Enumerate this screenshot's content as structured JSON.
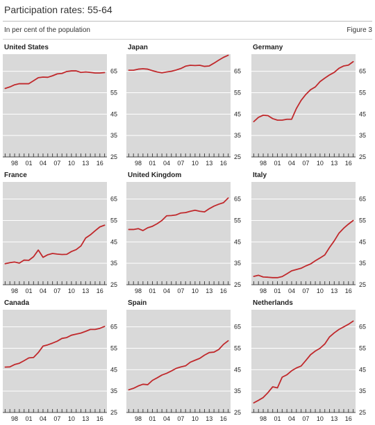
{
  "title": "Participation rates: 55-64",
  "subtitle": "In per cent of the population",
  "figure_label": "Figure 3",
  "colors": {
    "line": "#c0282b",
    "plot_bg": "#d9d9d9",
    "grid": "#ffffff",
    "text": "#222222"
  },
  "chart_data": [
    {
      "type": "line",
      "title": "United States",
      "x": [
        1996,
        1997,
        1998,
        1999,
        2000,
        2001,
        2002,
        2003,
        2004,
        2005,
        2006,
        2007,
        2008,
        2009,
        2010,
        2011,
        2012,
        2013,
        2014,
        2015,
        2016,
        2017
      ],
      "series": [
        {
          "values": [
            57,
            57.7,
            58.7,
            59.2,
            59.2,
            59.2,
            60.6,
            62,
            62.3,
            62.2,
            62.9,
            63.8,
            64,
            64.9,
            65.2,
            65.2,
            64.5,
            64.7,
            64.5,
            64.2,
            64.2,
            64.4
          ]
        }
      ],
      "xticks": [
        "98",
        "01",
        "04",
        "07",
        "10",
        "13",
        "16"
      ],
      "yticks": [
        25,
        35,
        45,
        55,
        65
      ],
      "ylim": [
        25,
        73
      ],
      "grid": true
    },
    {
      "type": "line",
      "title": "Japan",
      "x": [
        1996,
        1997,
        1998,
        1999,
        2000,
        2001,
        2002,
        2003,
        2004,
        2005,
        2006,
        2007,
        2008,
        2009,
        2010,
        2011,
        2012,
        2013,
        2014,
        2015,
        2016,
        2017
      ],
      "series": [
        {
          "values": [
            65.5,
            65.5,
            66,
            66.2,
            66,
            65.3,
            64.7,
            64.3,
            64.7,
            65,
            65.6,
            66.3,
            67.4,
            67.8,
            67.7,
            67.8,
            67.3,
            67.5,
            68.8,
            70.2,
            71.5,
            72.5
          ]
        }
      ],
      "xticks": [
        "98",
        "01",
        "04",
        "07",
        "10",
        "13",
        "16"
      ],
      "yticks": [
        25,
        35,
        45,
        55,
        65
      ],
      "ylim": [
        25,
        73
      ],
      "grid": true
    },
    {
      "type": "line",
      "title": "Germany",
      "x": [
        1996,
        1997,
        1998,
        1999,
        2000,
        2001,
        2002,
        2003,
        2004,
        2005,
        2006,
        2007,
        2008,
        2009,
        2010,
        2011,
        2012,
        2013,
        2014,
        2015,
        2016,
        2017
      ],
      "series": [
        {
          "values": [
            41.5,
            43.5,
            44.5,
            44.3,
            42.9,
            42.2,
            42.2,
            42.6,
            42.6,
            47.6,
            51.4,
            54.2,
            56.4,
            57.7,
            60.2,
            61.8,
            63.3,
            64.5,
            66.4,
            67.5,
            67.9,
            69.5
          ]
        }
      ],
      "xticks": [
        "98",
        "01",
        "04",
        "07",
        "10",
        "13",
        "16"
      ],
      "yticks": [
        25,
        35,
        45,
        55,
        65
      ],
      "ylim": [
        25,
        73
      ],
      "grid": true
    },
    {
      "type": "line",
      "title": "France",
      "x": [
        1996,
        1997,
        1998,
        1999,
        2000,
        2001,
        2002,
        2003,
        2004,
        2005,
        2006,
        2007,
        2008,
        2009,
        2010,
        2011,
        2012,
        2013,
        2014,
        2015,
        2016,
        2017
      ],
      "series": [
        {
          "values": [
            34.8,
            35.3,
            35.6,
            35.1,
            36.5,
            36.4,
            38.1,
            41.2,
            37.8,
            39,
            39.6,
            39.3,
            39.1,
            39.2,
            40.5,
            41.4,
            43.1,
            46.8,
            48.3,
            50.2,
            52,
            52.8
          ]
        }
      ],
      "xticks": [
        "98",
        "01",
        "04",
        "07",
        "10",
        "13",
        "16"
      ],
      "yticks": [
        25,
        35,
        45,
        55,
        65
      ],
      "ylim": [
        25,
        73
      ],
      "grid": true
    },
    {
      "type": "line",
      "title": "United Kingdom",
      "x": [
        1996,
        1997,
        1998,
        1999,
        2000,
        2001,
        2002,
        2003,
        2004,
        2005,
        2006,
        2007,
        2008,
        2009,
        2010,
        2011,
        2012,
        2013,
        2014,
        2015,
        2016,
        2017
      ],
      "series": [
        {
          "values": [
            50.8,
            50.8,
            51.2,
            50.3,
            51.6,
            52.3,
            53.5,
            55,
            57.2,
            57.3,
            57.6,
            58.5,
            58.7,
            59.3,
            59.8,
            59.3,
            59,
            60.5,
            61.7,
            62.6,
            63.3,
            65.5
          ]
        }
      ],
      "xticks": [
        "98",
        "01",
        "04",
        "07",
        "10",
        "13",
        "16"
      ],
      "yticks": [
        25,
        35,
        45,
        55,
        65
      ],
      "ylim": [
        25,
        73
      ],
      "grid": true
    },
    {
      "type": "line",
      "title": "Italy",
      "x": [
        1996,
        1997,
        1998,
        1999,
        2000,
        2001,
        2002,
        2003,
        2004,
        2005,
        2006,
        2007,
        2008,
        2009,
        2010,
        2011,
        2012,
        2013,
        2014,
        2015,
        2016,
        2017
      ],
      "series": [
        {
          "values": [
            28.9,
            29.4,
            28.6,
            28.5,
            28.3,
            28.3,
            28.8,
            30.1,
            31.5,
            32.1,
            32.7,
            33.8,
            34.7,
            36.2,
            37.5,
            38.9,
            42.4,
            45.5,
            49.1,
            51.4,
            53.3,
            55
          ]
        }
      ],
      "xticks": [
        "98",
        "01",
        "04",
        "07",
        "10",
        "13",
        "16"
      ],
      "yticks": [
        25,
        35,
        45,
        55,
        65
      ],
      "ylim": [
        25,
        73
      ],
      "grid": true
    },
    {
      "type": "line",
      "title": "Canada",
      "x": [
        1996,
        1997,
        1998,
        1999,
        2000,
        2001,
        2002,
        2003,
        2004,
        2005,
        2006,
        2007,
        2008,
        2009,
        2010,
        2011,
        2012,
        2013,
        2014,
        2015,
        2016,
        2017
      ],
      "series": [
        {
          "values": [
            46.2,
            46.3,
            47.4,
            48,
            49.2,
            50.5,
            50.7,
            53,
            56,
            56.6,
            57.4,
            58.3,
            59.6,
            60,
            61.1,
            61.6,
            62.1,
            62.9,
            63.8,
            63.8,
            64.3,
            65.2
          ]
        }
      ],
      "xticks": [
        "98",
        "01",
        "04",
        "07",
        "10",
        "13",
        "16"
      ],
      "yticks": [
        25,
        35,
        45,
        55,
        65
      ],
      "ylim": [
        25,
        73
      ],
      "grid": true
    },
    {
      "type": "line",
      "title": "Spain",
      "x": [
        1996,
        1997,
        1998,
        1999,
        2000,
        2001,
        2002,
        2003,
        2004,
        2005,
        2006,
        2007,
        2008,
        2009,
        2010,
        2011,
        2012,
        2013,
        2014,
        2015,
        2016,
        2017
      ],
      "series": [
        {
          "values": [
            35.6,
            36.3,
            37.4,
            38.2,
            38,
            40,
            41.2,
            42.5,
            43.3,
            44.4,
            45.6,
            46.3,
            46.8,
            48.5,
            49.4,
            50.3,
            51.8,
            53,
            53.2,
            54.4,
            56.8,
            58.5
          ]
        }
      ],
      "xticks": [
        "98",
        "01",
        "04",
        "07",
        "10",
        "13",
        "16"
      ],
      "yticks": [
        25,
        35,
        45,
        55,
        65
      ],
      "ylim": [
        25,
        73
      ],
      "grid": true
    },
    {
      "type": "line",
      "title": "Netherlands",
      "x": [
        1996,
        1997,
        1998,
        1999,
        2000,
        2001,
        2002,
        2003,
        2004,
        2005,
        2006,
        2007,
        2008,
        2009,
        2010,
        2011,
        2012,
        2013,
        2014,
        2015,
        2016,
        2017
      ],
      "series": [
        {
          "values": [
            29.5,
            30.7,
            32,
            34.3,
            37,
            36.5,
            41.5,
            42.6,
            44.5,
            45.8,
            46.7,
            49.3,
            52,
            53.7,
            55,
            57,
            60.3,
            62.2,
            63.8,
            65,
            66.2,
            67.7
          ]
        }
      ],
      "xticks": [
        "98",
        "01",
        "04",
        "07",
        "10",
        "13",
        "16"
      ],
      "yticks": [
        25,
        35,
        45,
        55,
        65
      ],
      "ylim": [
        25,
        73
      ],
      "grid": true
    }
  ]
}
